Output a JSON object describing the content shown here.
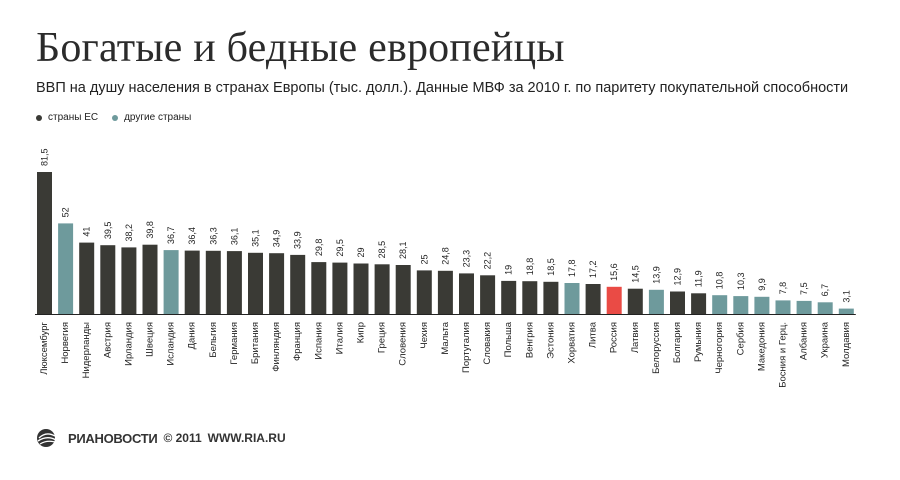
{
  "title": "Богатые и бедные европейцы",
  "subtitle": "ВВП на душу населения в странах Европы (тыс. долл.).  Данные МВФ за 2010 г. по паритету покупательной способности",
  "legend": [
    {
      "label": "страны ЕС",
      "color": "#3a3a35"
    },
    {
      "label": "другие страны",
      "color": "#6e9a9c"
    }
  ],
  "footer": {
    "logo_text": "РИАНОВОСТИ",
    "copyright": "© 2011",
    "url": "WWW.RIA.RU"
  },
  "chart_data": {
    "type": "bar",
    "colors": {
      "eu": "#3a3a35",
      "other": "#6e9a9c",
      "highlight": "#ea4b45"
    },
    "categories": [
      "Люксембург",
      "Норвегия",
      "Нидерланды",
      "Австрия",
      "Ирландия",
      "Швеция",
      "Исландия",
      "Дания",
      "Бельгия",
      "Германия",
      "Британия",
      "Финляндия",
      "Франция",
      "Испания",
      "Италия",
      "Кипр",
      "Греция",
      "Словения",
      "Чехия",
      "Мальта",
      "Португалия",
      "Словакия",
      "Польша",
      "Венгрия",
      "Эстония",
      "Хорватия",
      "Литва",
      "Россия",
      "Латвия",
      "Белоруссия",
      "Болгария",
      "Румыния",
      "Черногория",
      "Сербия",
      "Македония",
      "Босния и Герц.",
      "Албания",
      "Украина",
      "Молдавия"
    ],
    "values": [
      81.5,
      52,
      41,
      39.5,
      38.2,
      39.8,
      36.7,
      36.4,
      36.3,
      36.1,
      35.1,
      34.9,
      33.9,
      29.8,
      29.5,
      29,
      28.5,
      28.1,
      25,
      24.8,
      23.3,
      22.2,
      19,
      18.8,
      18.5,
      17.8,
      17.2,
      15.6,
      14.5,
      13.9,
      12.9,
      11.9,
      10.8,
      10.3,
      9.9,
      7.8,
      7.5,
      6.7,
      3.1
    ],
    "value_labels": [
      "81,5",
      "52",
      "41",
      "39,5",
      "38,2",
      "39,8",
      "36,7",
      "36,4",
      "36,3",
      "36,1",
      "35,1",
      "34,9",
      "33,9",
      "29,8",
      "29,5",
      "29",
      "28,5",
      "28,1",
      "25",
      "24,8",
      "23,3",
      "22,2",
      "19",
      "18,8",
      "18,5",
      "17,8",
      "17,2",
      "15,6",
      "14,5",
      "13,9",
      "12,9",
      "11,9",
      "10,8",
      "10,3",
      "9,9",
      "7,8",
      "7,5",
      "6,7",
      "3,1"
    ],
    "groups": [
      "eu",
      "other",
      "eu",
      "eu",
      "eu",
      "eu",
      "other",
      "eu",
      "eu",
      "eu",
      "eu",
      "eu",
      "eu",
      "eu",
      "eu",
      "eu",
      "eu",
      "eu",
      "eu",
      "eu",
      "eu",
      "eu",
      "eu",
      "eu",
      "eu",
      "other",
      "eu",
      "highlight",
      "eu",
      "other",
      "eu",
      "eu",
      "other",
      "other",
      "other",
      "other",
      "other",
      "other",
      "other"
    ],
    "ylim": [
      0,
      81.5
    ],
    "grid": false
  }
}
